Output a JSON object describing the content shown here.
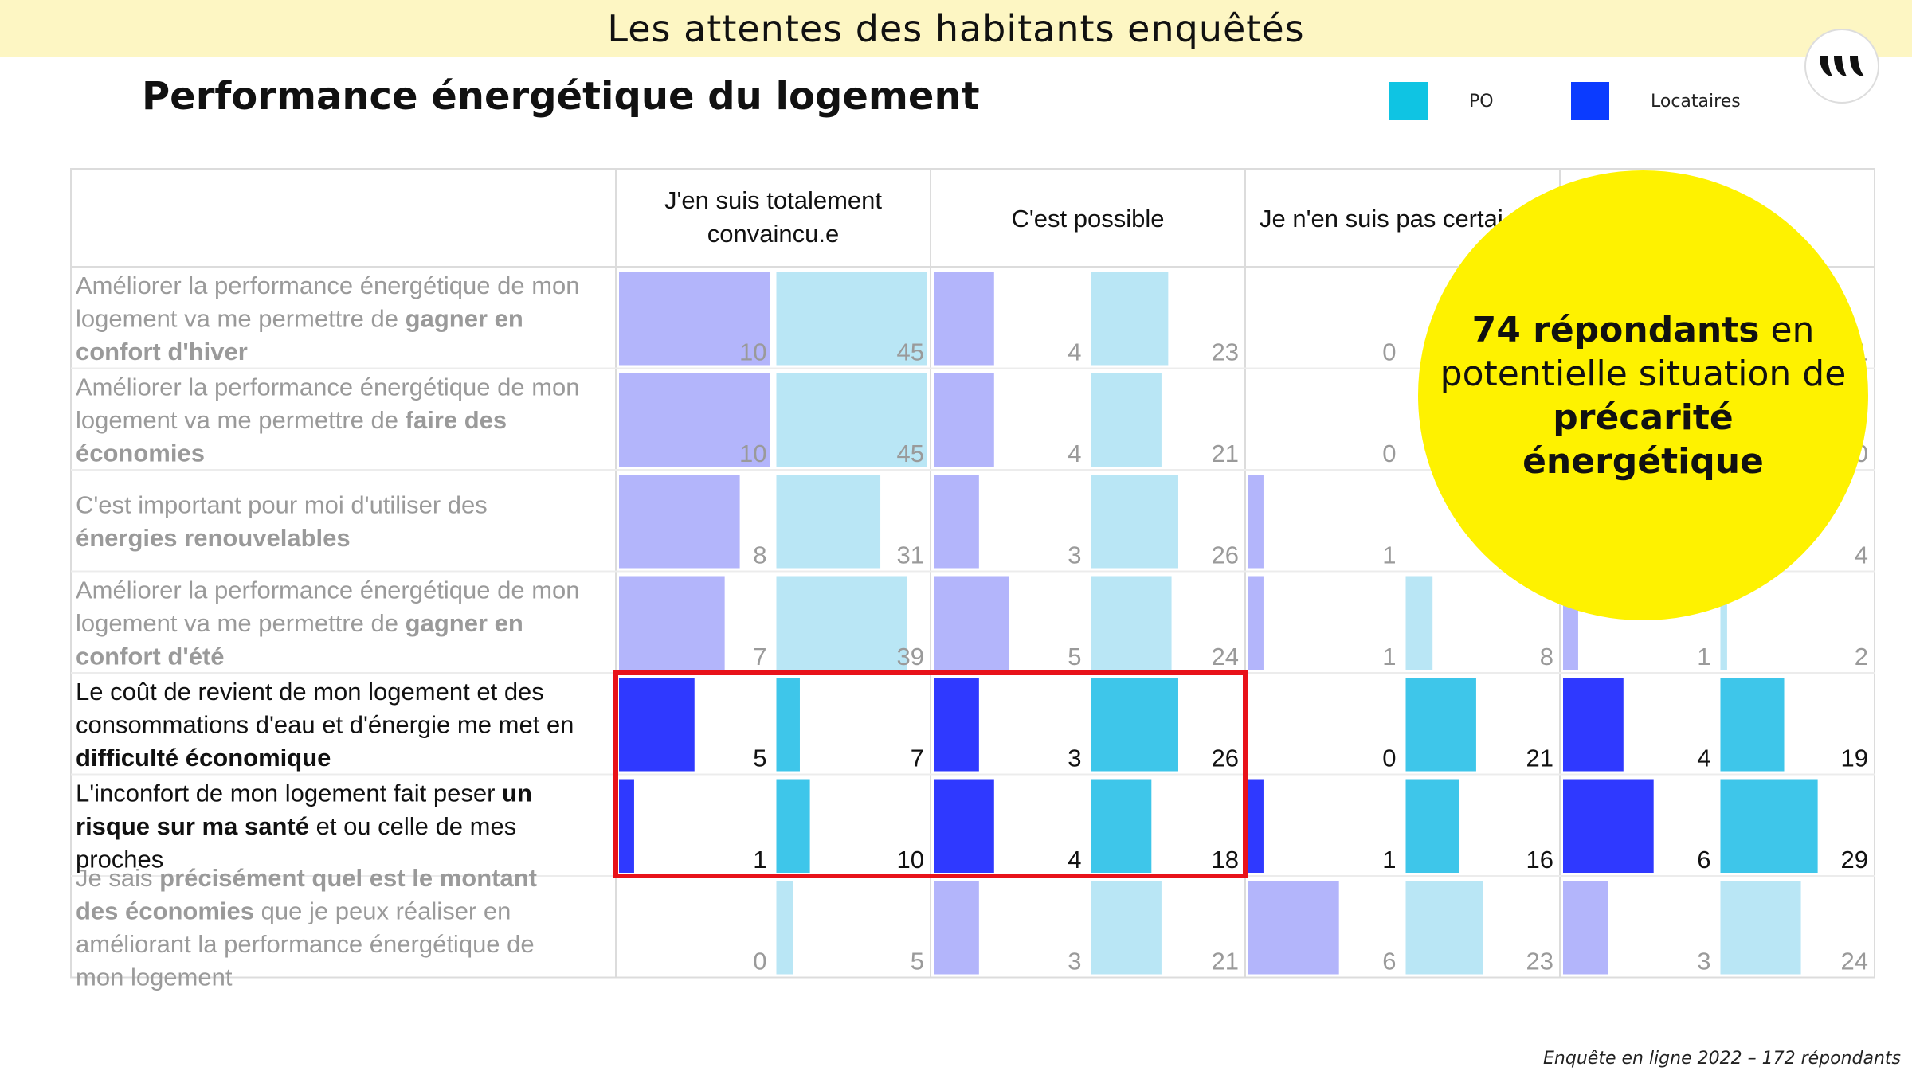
{
  "header": {
    "banner_title": "Les attentes des habitants enquêtés"
  },
  "slide": {
    "title": "Performance énergétique du logement"
  },
  "legend": {
    "items": [
      {
        "label": "PO",
        "color": "#0fc4e3"
      },
      {
        "label": "Locataires",
        "color": "#0b3bff"
      }
    ]
  },
  "bubble": {
    "part1_bold": "74 répondants",
    "part2": " en potentielle situation de ",
    "part3_bold": "précarité énergétique"
  },
  "footer": {
    "source": "Enquête en ligne  2022 – 172 répondants"
  },
  "chart_data": {
    "type": "table",
    "columns": [
      "J'en suis totalement convaincu.e",
      "C'est possible",
      "Je n'en suis pas certai",
      "t"
    ],
    "subcolumn_series": [
      "Locataires",
      "PO"
    ],
    "colors": {
      "Locataires": "#2f39ff",
      "PO": "#3ec6ea",
      "Locataires_faded": "#b3b5fb",
      "PO_faded": "#b9e6f5"
    },
    "rows": [
      {
        "segments": [
          {
            "text": "Améliorer la performance énergétique de mon logement va me permettre de ",
            "bold": false
          },
          {
            "text": "gagner en confort d'hiver",
            "bold": true
          }
        ],
        "highlighted": false,
        "values": [
          [
            10,
            45
          ],
          [
            4,
            23
          ],
          [
            0,
            null
          ],
          [
            null,
            1
          ]
        ]
      },
      {
        "segments": [
          {
            "text": "Améliorer la performance énergétique de mon logement va me permettre de ",
            "bold": false
          },
          {
            "text": "faire des économies",
            "bold": true
          }
        ],
        "highlighted": false,
        "values": [
          [
            10,
            45
          ],
          [
            4,
            21
          ],
          [
            0,
            null
          ],
          [
            null,
            0
          ]
        ]
      },
      {
        "segments": [
          {
            "text": "C'est important pour moi d'utiliser des ",
            "bold": false
          },
          {
            "text": "énergies renouvelables",
            "bold": true
          }
        ],
        "highlighted": false,
        "values": [
          [
            8,
            31
          ],
          [
            3,
            26
          ],
          [
            1,
            null
          ],
          [
            null,
            4
          ]
        ]
      },
      {
        "segments": [
          {
            "text": "Améliorer la performance énergétique de mon logement va me permettre de ",
            "bold": false
          },
          {
            "text": "gagner en confort d'été",
            "bold": true
          }
        ],
        "highlighted": false,
        "values": [
          [
            7,
            39
          ],
          [
            5,
            24
          ],
          [
            1,
            8
          ],
          [
            1,
            2
          ]
        ]
      },
      {
        "segments": [
          {
            "text": "Le coût de revient de mon logement et des consommations d'eau et d'énergie me met en ",
            "bold": false
          },
          {
            "text": "difficulté économique",
            "bold": true
          }
        ],
        "highlighted": true,
        "values": [
          [
            5,
            7
          ],
          [
            3,
            26
          ],
          [
            0,
            21
          ],
          [
            4,
            19
          ]
        ]
      },
      {
        "segments": [
          {
            "text": "L'inconfort de mon logement fait peser ",
            "bold": false
          },
          {
            "text": "un risque sur ma santé",
            "bold": true
          },
          {
            "text": " et ou celle de mes proches",
            "bold": false
          }
        ],
        "highlighted": true,
        "values": [
          [
            1,
            10
          ],
          [
            4,
            18
          ],
          [
            1,
            16
          ],
          [
            6,
            29
          ]
        ]
      },
      {
        "segments": [
          {
            "text": "Je sais ",
            "bold": false
          },
          {
            "text": "précisément quel est le montant des économies",
            "bold": true
          },
          {
            "text": " que je peux réaliser en améliorant la performance énergétique de mon logement",
            "bold": false
          }
        ],
        "highlighted": false,
        "values": [
          [
            0,
            5
          ],
          [
            3,
            21
          ],
          [
            6,
            23
          ],
          [
            3,
            24
          ]
        ]
      }
    ],
    "scale_max": {
      "Locataires": 10,
      "PO": 45
    },
    "callout_box": {
      "rows": [
        4,
        5
      ],
      "columns": [
        0,
        1
      ],
      "color": "#e8121a"
    }
  }
}
